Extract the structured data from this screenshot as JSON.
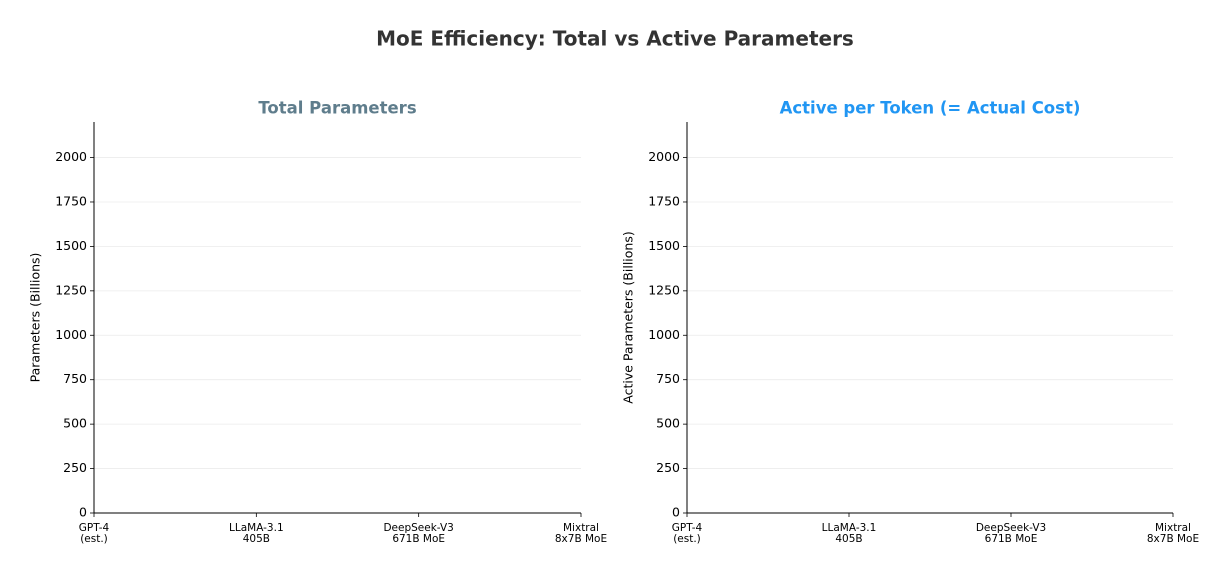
{
  "title": "MoE Efficiency: Total vs Active Parameters",
  "chart_data": [
    {
      "type": "bar",
      "title": "Total Parameters",
      "title_color": "#5f7d8c",
      "ylabel": "Parameters (Billions)",
      "categories": [
        "GPT-4\n(est.)",
        "LLaMA-3.1\n405B",
        "DeepSeek-V3\n671B MoE",
        "Mixtral\n8x7B MoE"
      ],
      "ylim": [
        0,
        2200
      ],
      "yticks": [
        0,
        250,
        500,
        750,
        1000,
        1250,
        1500,
        1750,
        2000
      ],
      "grid": true
    },
    {
      "type": "bar",
      "title": "Active per Token (= Actual Cost)",
      "title_color": "#2196f3",
      "ylabel": "Active Parameters (Billions)",
      "categories": [
        "GPT-4\n(est.)",
        "LLaMA-3.1\n405B",
        "DeepSeek-V3\n671B MoE",
        "Mixtral\n8x7B MoE"
      ],
      "ylim": [
        0,
        2200
      ],
      "yticks": [
        0,
        250,
        500,
        750,
        1000,
        1250,
        1500,
        1750,
        2000
      ],
      "grid": true
    }
  ]
}
